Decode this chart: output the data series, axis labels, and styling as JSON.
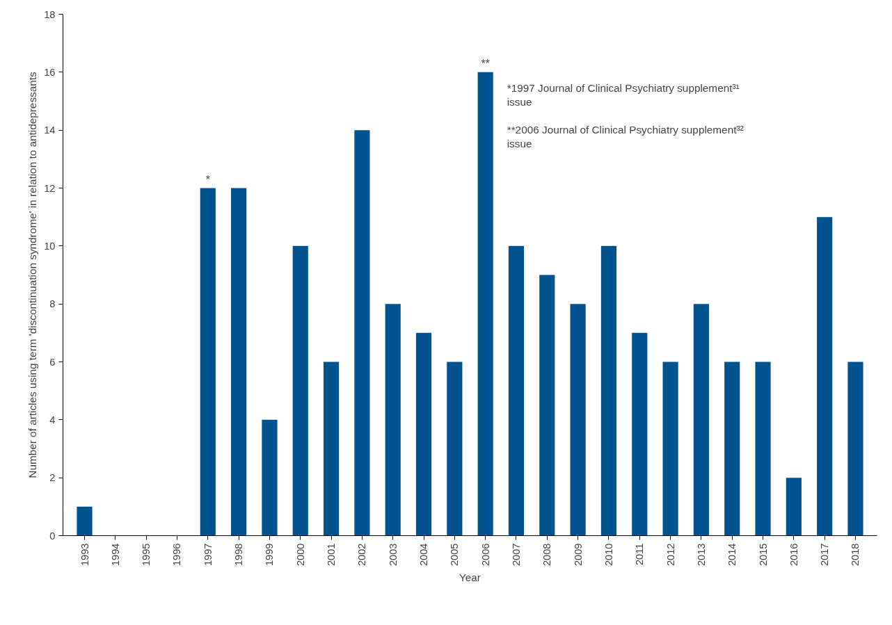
{
  "chart_data": {
    "type": "bar",
    "xlabel": "Year",
    "ylabel": "Number of articles using term 'discontinuation syndrome' in relation to antidepressants",
    "categories": [
      "1993",
      "1994",
      "1995",
      "1996",
      "1997",
      "1998",
      "1999",
      "2000",
      "2001",
      "2002",
      "2003",
      "2004",
      "2005",
      "2006",
      "2007",
      "2008",
      "2009",
      "2010",
      "2011",
      "2012",
      "2013",
      "2014",
      "2015",
      "2016",
      "2017",
      "2018"
    ],
    "values": [
      1,
      0,
      0,
      0,
      12,
      12,
      4,
      10,
      6,
      14,
      8,
      7,
      6,
      16,
      10,
      9,
      8,
      10,
      7,
      6,
      8,
      6,
      6,
      2,
      11,
      6
    ],
    "color": "#00538f",
    "ylim": [
      0,
      18
    ],
    "yticks": [
      0,
      2,
      4,
      6,
      8,
      10,
      12,
      14,
      16,
      18
    ],
    "grid": false,
    "annotations": [
      {
        "text": "*",
        "x": "1997",
        "y": 12
      },
      {
        "text": "**",
        "x": "2006",
        "y": 16
      },
      "*1997 Journal of Clinical Psychiatry supplement³¹ issue",
      "**2006 Journal of Clinical Psychiatry supplement³² issue"
    ]
  }
}
